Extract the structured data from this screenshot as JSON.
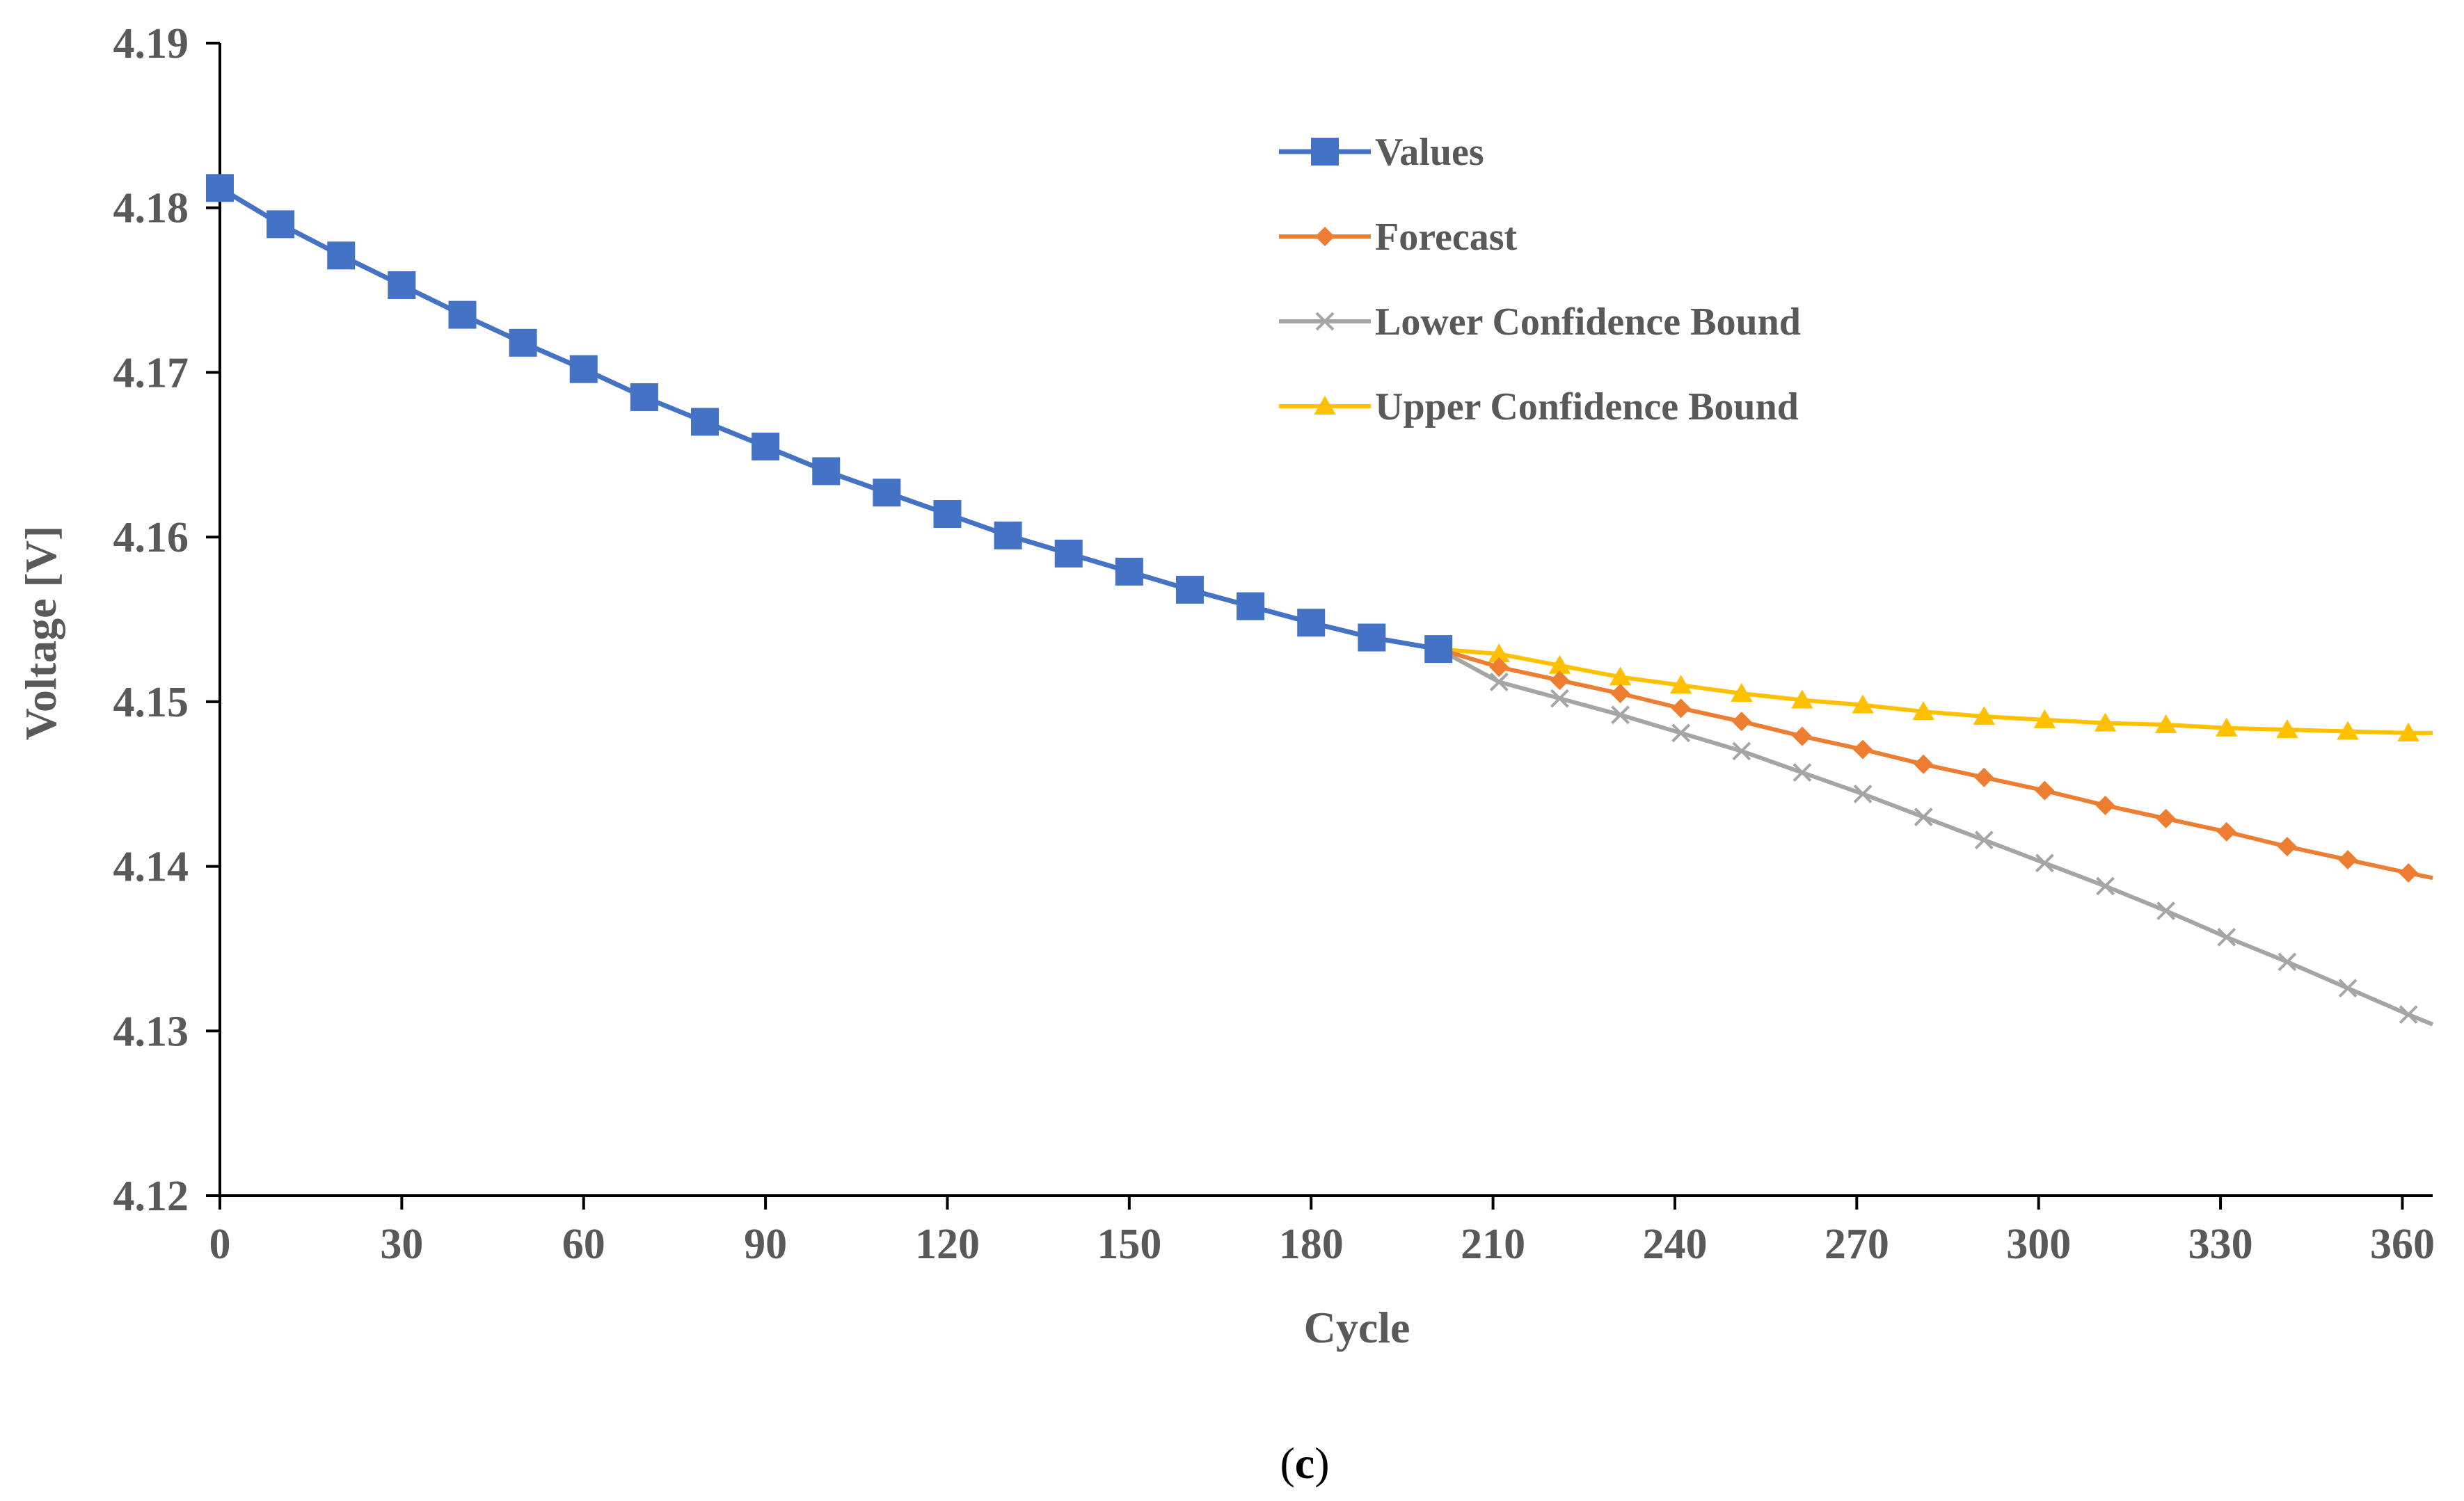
{
  "chart_data": {
    "type": "line",
    "title": "",
    "xlabel": "Cycle",
    "ylabel": "Voltage [V]",
    "xlim": [
      0,
      365
    ],
    "ylim": [
      4.12,
      4.19
    ],
    "xticks": [
      0,
      30,
      60,
      90,
      120,
      150,
      180,
      210,
      240,
      270,
      300,
      330,
      360
    ],
    "yticks": [
      4.12,
      4.13,
      4.14,
      4.15,
      4.16,
      4.17,
      4.18,
      4.19
    ],
    "xtick_labels": [
      "0",
      "30",
      "60",
      "90",
      "120",
      "150",
      "180",
      "210",
      "240",
      "270",
      "300",
      "330",
      "360"
    ],
    "ytick_labels": [
      "4.12",
      "4.13",
      "4.14",
      "4.15",
      "4.16",
      "4.17",
      "4.18",
      "4.19"
    ],
    "grid": false,
    "legend_position": "top-center",
    "caption": {
      "open": "(",
      "letter": "c",
      "close": ")"
    },
    "series": [
      {
        "name": "Values",
        "color": "#4472C4",
        "marker": "square",
        "points": [
          [
            0,
            4.1812
          ],
          [
            10,
            4.179
          ],
          [
            20,
            4.1771
          ],
          [
            30,
            4.1753
          ],
          [
            40,
            4.1735
          ],
          [
            50,
            4.1718
          ],
          [
            60,
            4.1702
          ],
          [
            70,
            4.1685
          ],
          [
            80,
            4.167
          ],
          [
            90,
            4.1655
          ],
          [
            100,
            4.164
          ],
          [
            110,
            4.1627
          ],
          [
            120,
            4.1614
          ],
          [
            130,
            4.1601
          ],
          [
            140,
            4.159
          ],
          [
            150,
            4.1579
          ],
          [
            160,
            4.1568
          ],
          [
            170,
            4.1558
          ],
          [
            180,
            4.1548
          ],
          [
            190,
            4.1539
          ],
          [
            201,
            4.1532
          ]
        ]
      },
      {
        "name": "Forecast",
        "color": "#ED7D31",
        "marker": "diamond",
        "points": [
          [
            201,
            4.1532
          ],
          [
            211,
            4.1521
          ],
          [
            221,
            4.1513
          ],
          [
            231,
            4.1505
          ],
          [
            241,
            4.1496
          ],
          [
            251,
            4.1488
          ],
          [
            261,
            4.1479
          ],
          [
            271,
            4.1471
          ],
          [
            281,
            4.1462
          ],
          [
            291,
            4.1454
          ],
          [
            301,
            4.1446
          ],
          [
            311,
            4.1437
          ],
          [
            321,
            4.1429
          ],
          [
            331,
            4.1421
          ],
          [
            341,
            4.1412
          ],
          [
            351,
            4.1404
          ],
          [
            361,
            4.1396
          ],
          [
            365,
            4.1393
          ]
        ]
      },
      {
        "name": "Lower Confidence Bound",
        "color": "#A5A5A5",
        "marker": "x",
        "points": [
          [
            201,
            4.1532
          ],
          [
            211,
            4.1512
          ],
          [
            221,
            4.1502
          ],
          [
            231,
            4.1492
          ],
          [
            241,
            4.1481
          ],
          [
            251,
            4.147
          ],
          [
            261,
            4.1457
          ],
          [
            271,
            4.1444
          ],
          [
            281,
            4.143
          ],
          [
            291,
            4.1416
          ],
          [
            301,
            4.1402
          ],
          [
            311,
            4.1388
          ],
          [
            321,
            4.1373
          ],
          [
            331,
            4.1357
          ],
          [
            341,
            4.1342
          ],
          [
            351,
            4.1326
          ],
          [
            361,
            4.131
          ],
          [
            365,
            4.1304
          ]
        ]
      },
      {
        "name": "Upper Confidence Bound",
        "color": "#FFC000",
        "marker": "triangle",
        "points": [
          [
            201,
            4.1532
          ],
          [
            211,
            4.1529
          ],
          [
            221,
            4.1522
          ],
          [
            231,
            4.1515
          ],
          [
            241,
            4.151
          ],
          [
            251,
            4.1505
          ],
          [
            261,
            4.1501
          ],
          [
            271,
            4.1498
          ],
          [
            281,
            4.1494
          ],
          [
            291,
            4.1491
          ],
          [
            301,
            4.1489
          ],
          [
            311,
            4.1487
          ],
          [
            321,
            4.1486
          ],
          [
            331,
            4.1484
          ],
          [
            341,
            4.1483
          ],
          [
            351,
            4.1482
          ],
          [
            361,
            4.1481
          ],
          [
            365,
            4.1481
          ]
        ]
      }
    ]
  }
}
